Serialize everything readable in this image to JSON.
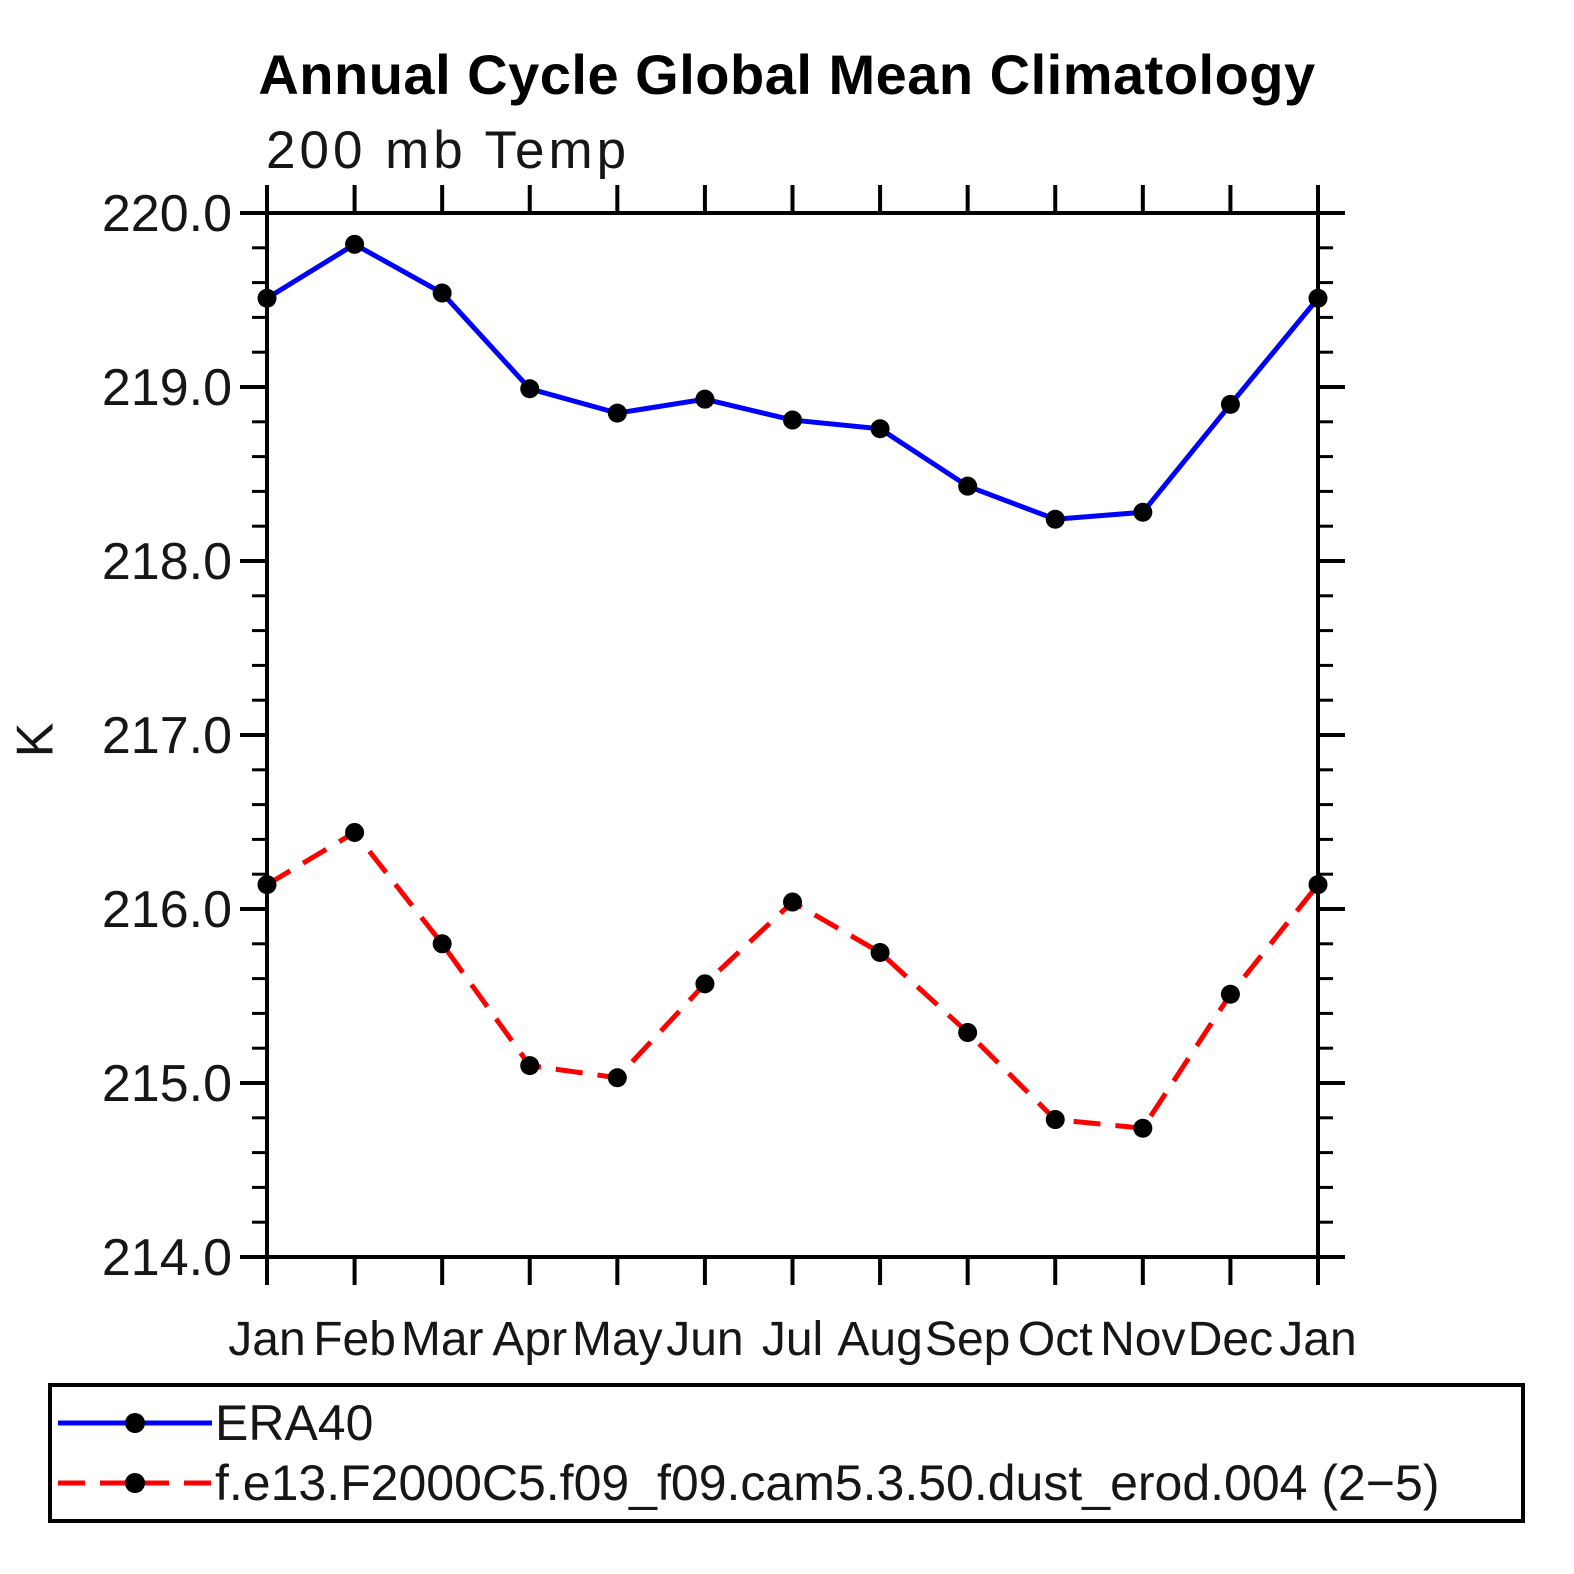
{
  "chart_data": {
    "type": "line",
    "title": "Annual Cycle Global Mean Climatology",
    "subtitle": "200 mb Temp",
    "ylabel": "K",
    "x_categories": [
      "Jan",
      "Feb",
      "Mar",
      "Apr",
      "May",
      "Jun",
      "Jul",
      "Aug",
      "Sep",
      "Oct",
      "Nov",
      "Dec",
      "Jan"
    ],
    "y_axis": {
      "min": 214.0,
      "max": 220.0,
      "major_tick_step": 1.0,
      "minor_tick_step": 0.2,
      "tick_labels": [
        "220.0",
        "219.0",
        "218.0",
        "217.0",
        "216.0",
        "215.0",
        "214.0"
      ]
    },
    "grid": "off",
    "legend_position": "bottom",
    "series": [
      {
        "name": "ERA40",
        "color": "#0000ff",
        "line_style": "solid",
        "marker": "filled-circle",
        "marker_color": "#000000",
        "values": [
          219.51,
          219.82,
          219.54,
          218.99,
          218.85,
          218.93,
          218.81,
          218.76,
          218.43,
          218.24,
          218.28,
          218.9,
          219.51
        ]
      },
      {
        "name": "f.e13.F2000C5.f09_f09.cam5.3.50.dust_erod.004 (2−5)",
        "color": "#ff0000",
        "line_style": "dashed",
        "marker": "filled-circle",
        "marker_color": "#000000",
        "values": [
          216.14,
          216.44,
          215.8,
          215.1,
          215.03,
          215.57,
          216.04,
          215.75,
          215.29,
          214.79,
          214.74,
          215.51,
          216.14
        ]
      }
    ]
  }
}
